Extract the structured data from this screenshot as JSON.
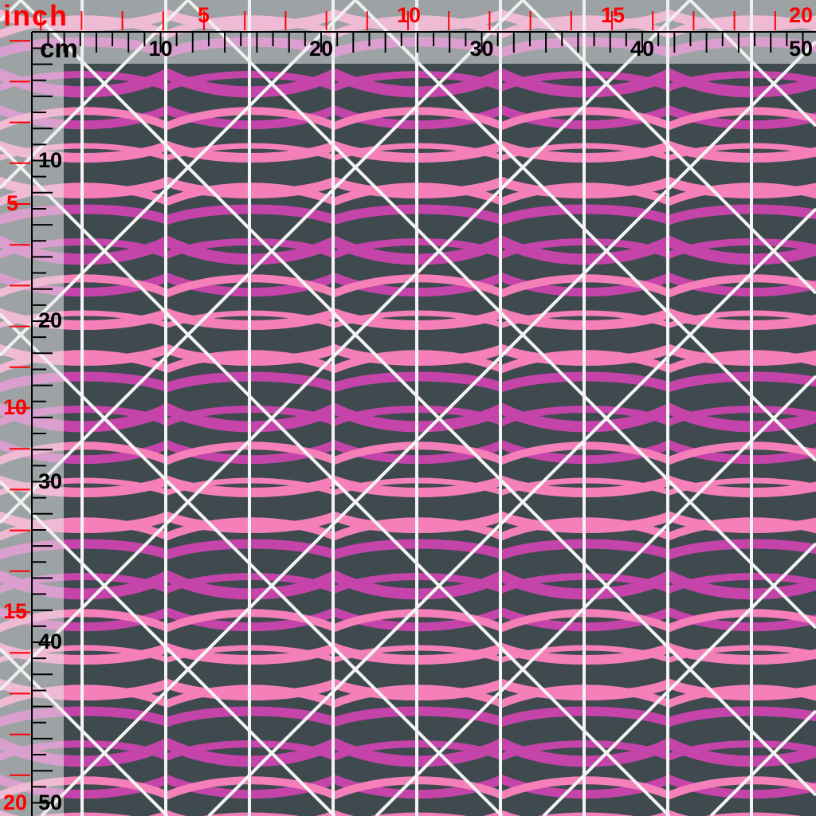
{
  "colors": {
    "dark": "#3f4a4e",
    "pink": "#f47fb9",
    "magenta": "#c544aa",
    "lines": "#f4f4f4",
    "inch_ruler": "#ff0000",
    "cm_ruler": "#000000"
  },
  "ruler": {
    "inch_unit": "inch",
    "cm_unit": "cm",
    "top_cm_labels": [
      "10",
      "20",
      "30",
      "40",
      "50"
    ],
    "top_inch_labels": [
      "5",
      "10",
      "15",
      "20"
    ],
    "left_cm_labels": [
      "10",
      "20",
      "30",
      "40",
      "50"
    ],
    "left_inch_labels": [
      "5",
      "10",
      "15",
      "20"
    ]
  }
}
